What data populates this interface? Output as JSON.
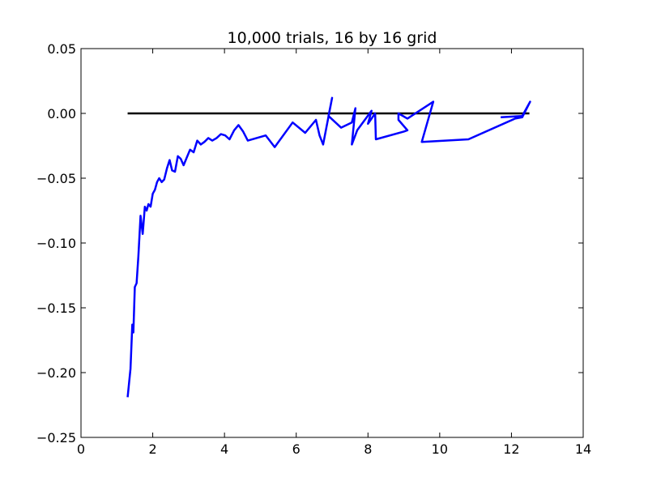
{
  "chart_data": {
    "type": "line",
    "title": "10,000 trials, 16 by 16 grid",
    "xlabel": "",
    "ylabel": "",
    "xlim": [
      0,
      14
    ],
    "ylim": [
      -0.25,
      0.05
    ],
    "xticks": [
      0,
      2,
      4,
      6,
      8,
      10,
      12,
      14
    ],
    "yticks": [
      0.05,
      0.0,
      -0.05,
      -0.1,
      -0.15,
      -0.2,
      -0.25
    ],
    "xtick_labels": [
      "0",
      "2",
      "4",
      "6",
      "8",
      "10",
      "12",
      "14"
    ],
    "ytick_labels": [
      "0.05",
      "0.00",
      "−0.05",
      "−0.10",
      "−0.15",
      "−0.20",
      "−0.25"
    ],
    "grid": false,
    "reference_line": {
      "y": 0.0,
      "x": [
        1.3,
        12.5
      ],
      "color": "#000000"
    },
    "series": [
      {
        "color": "#0000ff",
        "x": [
          1.3,
          1.38,
          1.43,
          1.46,
          1.5,
          1.55,
          1.6,
          1.66,
          1.72,
          1.78,
          1.83,
          1.88,
          1.94,
          2.0,
          2.06,
          2.12,
          2.18,
          2.25,
          2.32,
          2.4,
          2.47,
          2.54,
          2.62,
          2.7,
          2.78,
          2.86,
          2.95,
          3.04,
          3.14,
          3.24,
          3.34,
          3.44,
          3.55,
          3.66,
          3.78,
          3.9,
          4.02,
          4.14,
          4.27,
          4.39,
          4.52,
          4.65,
          5.15,
          5.4,
          5.9,
          6.25,
          6.55,
          6.65,
          6.75,
          7.0,
          6.9,
          7.25,
          7.55,
          7.65,
          7.55,
          7.7,
          8.1,
          8.0,
          8.2,
          8.22,
          9.0,
          9.1,
          8.85,
          8.85,
          9.1,
          9.82,
          9.5,
          10.8,
          12.1,
          12.3,
          12.52,
          12.3,
          11.7
        ],
        "y": [
          -0.219,
          -0.197,
          -0.163,
          -0.169,
          -0.134,
          -0.131,
          -0.11,
          -0.079,
          -0.093,
          -0.072,
          -0.075,
          -0.07,
          -0.072,
          -0.062,
          -0.059,
          -0.053,
          -0.05,
          -0.053,
          -0.051,
          -0.042,
          -0.036,
          -0.044,
          -0.045,
          -0.033,
          -0.035,
          -0.04,
          -0.034,
          -0.028,
          -0.03,
          -0.021,
          -0.024,
          -0.022,
          -0.019,
          -0.021,
          -0.019,
          -0.016,
          -0.017,
          -0.02,
          -0.013,
          -0.009,
          -0.014,
          -0.021,
          -0.017,
          -0.026,
          -0.007,
          -0.015,
          -0.005,
          -0.017,
          -0.024,
          0.012,
          -0.002,
          -0.011,
          -0.007,
          0.004,
          -0.024,
          -0.013,
          0.002,
          -0.008,
          0.0,
          -0.02,
          -0.014,
          -0.013,
          -0.005,
          0.0,
          -0.004,
          0.009,
          -0.022,
          -0.02,
          -0.004,
          -0.003,
          0.009,
          -0.002,
          -0.003
        ]
      }
    ]
  }
}
